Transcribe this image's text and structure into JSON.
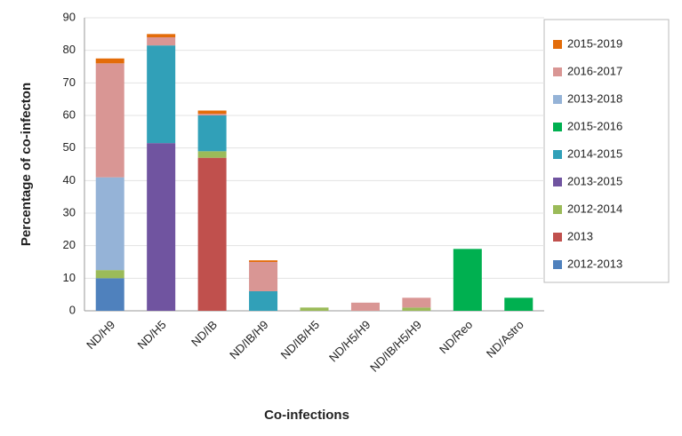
{
  "chart_data": {
    "type": "stacked_bar",
    "y_label": "Percentage of co-infecton",
    "x_label": "Co-infections",
    "categories": [
      "ND/H9",
      "ND/H5",
      "ND/IB",
      "ND/IB/H9",
      "ND/IB/H5",
      "ND/H5/H9",
      "ND/IB/H5/H9",
      "ND/Reo",
      "ND/Astro"
    ],
    "ylim": [
      0,
      90
    ],
    "yticks": [
      0,
      10,
      20,
      30,
      40,
      50,
      60,
      70,
      80,
      90
    ],
    "grid": true,
    "legend": "right",
    "series": [
      {
        "name": "2012-2013",
        "color": "#4f81bd",
        "values": [
          10,
          0,
          0,
          0,
          0,
          0,
          0,
          0,
          0
        ]
      },
      {
        "name": "2013",
        "color": "#c0504d",
        "values": [
          0,
          0,
          47,
          0,
          0,
          0,
          0,
          0,
          0
        ]
      },
      {
        "name": "2012-2014",
        "color": "#9bbb59",
        "values": [
          2.5,
          0,
          2,
          0,
          1,
          0,
          1,
          0,
          0
        ]
      },
      {
        "name": "2013-2015",
        "color": "#7054a0",
        "values": [
          0,
          51.5,
          0,
          0,
          0,
          0,
          0,
          0,
          0
        ]
      },
      {
        "name": "2014-2015",
        "color": "#31a0b8",
        "values": [
          0,
          30,
          11,
          6,
          0,
          0,
          0,
          0,
          0
        ]
      },
      {
        "name": "2015-2016",
        "color": "#00b050",
        "values": [
          0,
          0,
          0,
          0,
          0,
          0,
          0,
          19,
          4
        ]
      },
      {
        "name": "2013-2018",
        "color": "#95b3d7",
        "values": [
          28.5,
          0,
          0,
          0,
          0,
          0,
          0,
          0,
          0
        ]
      },
      {
        "name": "2016-2017",
        "color": "#d99694",
        "values": [
          35,
          2.5,
          0.5,
          9,
          0,
          2.5,
          3,
          0,
          0
        ]
      },
      {
        "name": "2015-2019",
        "color": "#e36c09",
        "values": [
          1.5,
          1,
          1,
          0.5,
          0,
          0,
          0,
          0,
          0
        ]
      }
    ]
  }
}
